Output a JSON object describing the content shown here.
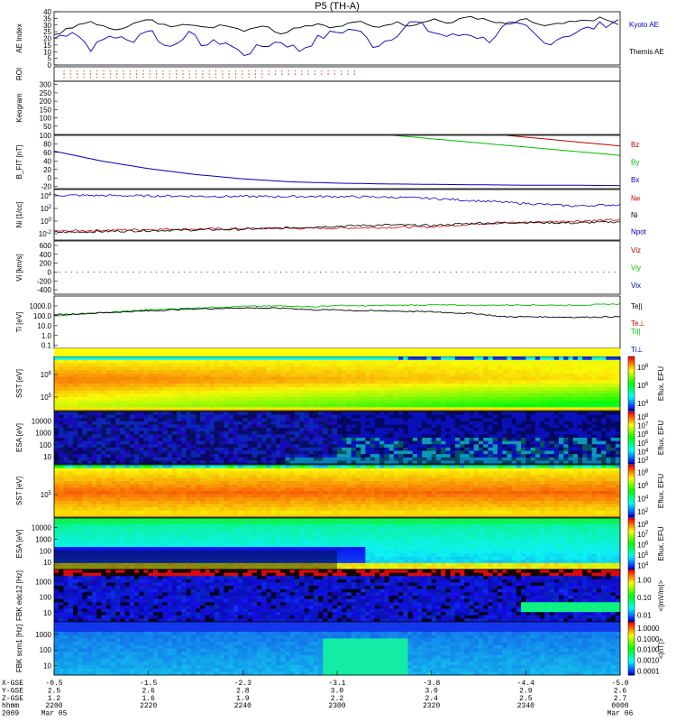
{
  "title": "P5 (TH-A)",
  "footer": {
    "row_labels": [
      "X-GSE",
      "Y-GSE",
      "Z-GSE",
      "hhmm",
      "2009"
    ],
    "columns": [
      {
        "x": "-0.5",
        "y": "2.5",
        "z": "1.2",
        "time": "2200",
        "date": "Mar 05"
      },
      {
        "x": "-1.5",
        "y": "2.6",
        "z": "1.6",
        "time": "2220",
        "date": ""
      },
      {
        "x": "-2.3",
        "y": "2.8",
        "z": "1.9",
        "time": "2240",
        "date": ""
      },
      {
        "x": "-3.1",
        "y": "3.0",
        "z": "2.2",
        "time": "2300",
        "date": ""
      },
      {
        "x": "-3.8",
        "y": "3.0",
        "z": "2.4",
        "time": "2320",
        "date": ""
      },
      {
        "x": "-4.4",
        "y": "2.9",
        "z": "2.5",
        "time": "2340",
        "date": ""
      },
      {
        "x": "-5.0",
        "y": "2.6",
        "z": "2.7",
        "time": "0000",
        "date": "Mar 06"
      }
    ]
  },
  "colorbar_labels": {
    "ion_sst": [
      "10^8",
      "10^6",
      "10^4"
    ],
    "ion_sst_title": "Eflux, EFU",
    "ion_esa": [
      "10^8",
      "10^7",
      "10^6",
      "10^5",
      "10^4",
      "10^3"
    ],
    "ion_esa_title": "Eflux, EFU",
    "elec_sst": [
      "10^8",
      "10^6",
      "10^4",
      "10^2"
    ],
    "elec_sst_title": "Eflux, EFU",
    "elec_esa": [
      "10^8",
      "10^7",
      "10^6",
      "10^5",
      "10^4"
    ],
    "elec_esa_title": "Eflux, EFU",
    "fbk_edc12": [
      "1.00",
      "0.10",
      "0.01"
    ],
    "fbk_edc12_title": "<|mV/m|>",
    "fbk_scm1": [
      "1.0000",
      "0.1000",
      "0.0100",
      "0.0010",
      "0.0001"
    ],
    "fbk_scm1_title": "<|nT|>"
  },
  "chart_data": [
    {
      "type": "line",
      "id": "ae",
      "ylabel": "AE Index",
      "yticks": [
        "40",
        "35",
        "30",
        "25",
        "20",
        "15",
        "10",
        "5",
        "0"
      ],
      "ylim": [
        0,
        40
      ],
      "x_range_min": [
        0,
        120
      ],
      "series": [
        {
          "name": "Kyoto AE",
          "color": "#0000c0",
          "x": [
            0,
            4,
            8,
            12,
            16,
            20,
            24,
            28,
            32,
            36,
            40,
            44,
            48,
            52,
            56,
            60,
            64,
            68,
            72,
            76,
            80,
            84,
            88,
            92,
            96,
            100,
            104,
            108,
            112,
            116,
            120
          ],
          "y": [
            20,
            26,
            12,
            23,
            17,
            28,
            12,
            24,
            15,
            18,
            8,
            14,
            18,
            11,
            20,
            25,
            27,
            14,
            22,
            33,
            25,
            21,
            24,
            18,
            30,
            28,
            16,
            22,
            26,
            30,
            34
          ]
        },
        {
          "name": "Themis AE",
          "color": "#000000",
          "x": [
            0,
            4,
            8,
            12,
            16,
            20,
            24,
            28,
            32,
            36,
            40,
            44,
            48,
            52,
            56,
            60,
            64,
            68,
            72,
            76,
            80,
            84,
            88,
            92,
            96,
            100,
            104,
            108,
            112,
            116,
            120
          ],
          "y": [
            23,
            28,
            33,
            26,
            30,
            34,
            29,
            32,
            27,
            31,
            26,
            30,
            24,
            29,
            31,
            28,
            33,
            28,
            32,
            30,
            35,
            31,
            37,
            33,
            30,
            34,
            29,
            31,
            33,
            35,
            30
          ]
        }
      ]
    },
    {
      "type": "scatter",
      "id": "roi",
      "ylabel": "ROI",
      "note": "dotted bars"
    },
    {
      "type": "line",
      "id": "keogram",
      "ylabel": "Keogram",
      "yticks": [
        "300",
        "250",
        "200",
        "150",
        "100",
        "50"
      ],
      "ylim": [
        0,
        320
      ]
    },
    {
      "type": "line",
      "id": "bfit",
      "ylabel": "B_FIT [nT]",
      "yticks": [
        "100",
        "80",
        "60",
        "40",
        "20",
        "0",
        "-20"
      ],
      "ylim": [
        -25,
        100
      ],
      "series": [
        {
          "name": "Bz",
          "color": "#c00000",
          "x": [
            96,
            120
          ],
          "y": [
            100,
            75
          ]
        },
        {
          "name": "By",
          "color": "#00c000",
          "x": [
            72,
            120
          ],
          "y": [
            100,
            53
          ]
        },
        {
          "name": "Bx",
          "color": "#0000c0",
          "x": [
            0,
            10,
            20,
            30,
            40,
            50,
            60,
            70,
            80,
            90,
            100,
            110,
            120
          ],
          "y": [
            63,
            40,
            22,
            8,
            -2,
            -9,
            -12,
            -14,
            -15,
            -16,
            -17,
            -17,
            -18
          ]
        }
      ]
    },
    {
      "type": "line",
      "id": "ni",
      "ylabel": "Ni [1/cc]",
      "yticks": [
        "10^4",
        "10^2",
        "10^0",
        "10^-2"
      ],
      "ylim_log10": [
        -3,
        5
      ],
      "series": [
        {
          "name": "Ne",
          "color": "#c00000",
          "x": [
            0,
            20,
            40,
            60,
            70,
            80,
            90,
            100,
            110,
            120
          ],
          "y": [
            -1.6,
            -1.3,
            -1.2,
            -1.1,
            -1.0,
            -0.9,
            -0.4,
            -0.2,
            0.0,
            0.2
          ]
        },
        {
          "name": "Ni",
          "color": "#000000",
          "x": [
            0,
            20,
            40,
            60,
            70,
            80,
            90,
            100,
            110,
            120
          ],
          "y": [
            -1.8,
            -1.5,
            -1.3,
            -0.8,
            -0.6,
            -0.7,
            -0.3,
            -0.2,
            -0.3,
            -0.1
          ]
        },
        {
          "name": "Npot",
          "color": "#0000c0",
          "x": [
            0,
            20,
            40,
            60,
            70,
            80,
            90,
            100,
            110,
            120
          ],
          "y": [
            4.1,
            4.0,
            3.9,
            3.9,
            3.8,
            3.6,
            3.2,
            2.8,
            2.4,
            2.6
          ]
        }
      ]
    },
    {
      "type": "line",
      "id": "vi",
      "ylabel": "Vi [km/s]",
      "yticks": [
        "600",
        "400",
        "200",
        "0",
        "-200",
        "-400"
      ],
      "ylim": [
        -500,
        700
      ],
      "series": [
        {
          "name": "Viz",
          "color": "#c00000",
          "x": [
            0,
            120
          ],
          "y": [
            0,
            0
          ]
        },
        {
          "name": "Viy",
          "color": "#00c000",
          "x": [
            0,
            120
          ],
          "y": [
            0,
            0
          ]
        },
        {
          "name": "Vix",
          "color": "#0000c0",
          "x": [
            0,
            120
          ],
          "y": [
            0,
            0
          ]
        }
      ]
    },
    {
      "type": "line",
      "id": "ti",
      "ylabel": "Ti [eV]",
      "yticks": [
        "1000.0",
        "100.0",
        "10.0",
        "1.0",
        "0.1"
      ],
      "ylim_log10": [
        -1.3,
        4
      ],
      "series": [
        {
          "name": "Te||",
          "color": "#000000",
          "x": [
            0,
            10,
            20,
            30,
            40,
            50,
            55,
            60,
            65,
            70,
            80,
            90,
            95,
            100,
            110,
            120
          ],
          "y": [
            2.1,
            2.3,
            2.5,
            2.7,
            2.8,
            2.75,
            2.6,
            2.6,
            2.5,
            2.5,
            2.4,
            2.2,
            1.9,
            1.9,
            1.85,
            1.9
          ]
        },
        {
          "name": "Te⊥",
          "color": "#c00000",
          "x": [
            0,
            120
          ],
          "y": [
            2.0,
            2.0
          ]
        },
        {
          "name": "Ti||",
          "color": "#00c000",
          "x": [
            0,
            10,
            20,
            30,
            40,
            50,
            55,
            60,
            65,
            70,
            80,
            90,
            100,
            110,
            120
          ],
          "y": [
            2.0,
            2.3,
            2.6,
            2.8,
            2.95,
            3.0,
            2.9,
            3.05,
            3.0,
            3.05,
            3.1,
            3.05,
            3.1,
            3.05,
            3.2
          ]
        },
        {
          "name": "Ti⊥",
          "color": "#0000c0",
          "x": [
            0,
            120
          ],
          "y": [
            2.9,
            2.9
          ]
        }
      ]
    },
    {
      "type": "heatmap",
      "id": "ion_sst",
      "ylabel": "SST [eV]",
      "yticks": [
        "10^6",
        "10^5"
      ]
    },
    {
      "type": "heatmap",
      "id": "ion_esa",
      "ylabel": "ESA [eV]",
      "yticks": [
        "10000",
        "1000",
        "100",
        "10"
      ]
    },
    {
      "type": "heatmap",
      "id": "elec_sst",
      "ylabel": "SST [eV]",
      "yticks": [
        "10^5"
      ]
    },
    {
      "type": "heatmap",
      "id": "elec_esa",
      "ylabel": "ESA [eV]",
      "yticks": [
        "10000",
        "1000",
        "100",
        "10"
      ]
    },
    {
      "type": "heatmap",
      "id": "fbk_edc12",
      "ylabel": "FBK edc12 [Hz]",
      "yticks": [
        "1000",
        "100",
        "10"
      ]
    },
    {
      "type": "heatmap",
      "id": "fbk_scm1",
      "ylabel": "FBK scm1 [Hz]",
      "yticks": [
        "1000",
        "100",
        "10"
      ]
    }
  ]
}
